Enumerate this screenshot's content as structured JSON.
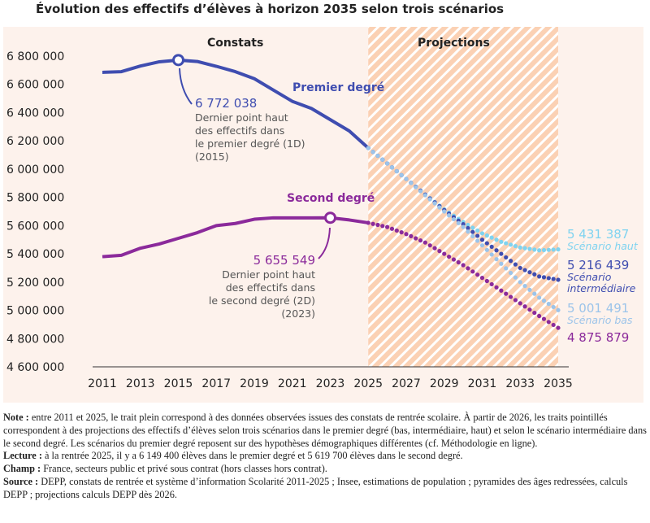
{
  "chart_data": {
    "type": "line",
    "title": "Évolution des effectifs d’élèves à horizon 2035 selon trois scénarios",
    "xlim": [
      2011,
      2035
    ],
    "ylim": [
      4600000,
      6800000
    ],
    "x_ticks": [
      "2011",
      "2013",
      "2015",
      "2017",
      "2019",
      "2021",
      "2023",
      "2025",
      "2027",
      "2029",
      "2031",
      "2033",
      "2035"
    ],
    "y_ticks": [
      "4 600 000",
      "4 800 000",
      "5 000 000",
      "5 200 000",
      "5 400 000",
      "5 600 000",
      "5 800 000",
      "6 000 000",
      "6 200 000",
      "6 400 000",
      "6 600 000",
      "6 800 000"
    ],
    "regions": {
      "observed": "Constats",
      "projected": "Projections"
    },
    "colors": {
      "premier": "#3f4db0",
      "second": "#8b2a9b",
      "haut": "#7fd3f0",
      "inter": "#3f4db0",
      "bas": "#9cc4ea",
      "hatch": "#fbd1b4"
    },
    "series": [
      {
        "name": "Premier degré",
        "key": "premier",
        "x": [
          2011,
          2012,
          2013,
          2014,
          2015,
          2016,
          2017,
          2018,
          2019,
          2020,
          2021,
          2022,
          2023,
          2024,
          2025
        ],
        "values": [
          6685000,
          6690000,
          6730000,
          6760000,
          6772038,
          6762000,
          6728000,
          6690000,
          6640000,
          6560000,
          6480000,
          6430000,
          6350000,
          6270000,
          6149400
        ]
      },
      {
        "name": "Second degré",
        "key": "second",
        "x": [
          2011,
          2012,
          2013,
          2014,
          2015,
          2016,
          2017,
          2018,
          2019,
          2020,
          2021,
          2022,
          2023,
          2024,
          2025
        ],
        "values": [
          5380000,
          5390000,
          5440000,
          5470000,
          5510000,
          5550000,
          5600000,
          5615000,
          5645000,
          5655000,
          5655000,
          5655000,
          5655549,
          5640000,
          5619700
        ]
      },
      {
        "name": "Scénario haut",
        "key": "haut",
        "dotted": true,
        "x": [
          2025,
          2026,
          2027,
          2028,
          2029,
          2030,
          2031,
          2032,
          2033,
          2034,
          2035
        ],
        "values": [
          6149400,
          6040000,
          5930000,
          5820000,
          5715000,
          5625000,
          5545000,
          5485000,
          5445000,
          5425000,
          5431387
        ]
      },
      {
        "name": "Scénario intermédiaire",
        "key": "inter",
        "dotted": true,
        "x": [
          2025,
          2026,
          2027,
          2028,
          2029,
          2030,
          2031,
          2032,
          2033,
          2034,
          2035
        ],
        "values": [
          6149400,
          6040000,
          5930000,
          5820000,
          5710000,
          5610000,
          5500000,
          5400000,
          5300000,
          5240000,
          5216439
        ]
      },
      {
        "name": "Scénario bas",
        "key": "bas",
        "dotted": true,
        "x": [
          2025,
          2026,
          2027,
          2028,
          2029,
          2030,
          2031,
          2032,
          2033,
          2034,
          2035
        ],
        "values": [
          6149400,
          6040000,
          5930000,
          5815000,
          5700000,
          5590000,
          5460000,
          5330000,
          5200000,
          5090000,
          5001491
        ]
      },
      {
        "name": "Second degré (projection)",
        "key": "second",
        "dotted": true,
        "x": [
          2025,
          2026,
          2027,
          2028,
          2029,
          2030,
          2031,
          2032,
          2033,
          2034,
          2035
        ],
        "values": [
          5619700,
          5590000,
          5540000,
          5480000,
          5400000,
          5320000,
          5230000,
          5140000,
          5050000,
          4960000,
          4875879
        ]
      }
    ],
    "labels": {
      "premier": "Premier degré",
      "second": "Second degré"
    },
    "annotations": {
      "peak1": {
        "value": "6 772 038",
        "lines": [
          "Dernier point haut",
          "des effectifs dans",
          "le premier degré (1D)",
          "(2015)"
        ]
      },
      "peak2": {
        "value": "5 655 549",
        "lines": [
          "Dernier point haut",
          "des effectifs dans",
          "le second degré (2D)",
          "(2023)"
        ]
      },
      "end_haut": {
        "value": "5 431 387",
        "label": "Scénario haut"
      },
      "end_inter": {
        "value": "5 216 439",
        "label1": "Scénario",
        "label2": "intermédiaire"
      },
      "end_bas": {
        "value": "5 001 491",
        "label": "Scénario bas"
      },
      "end_second": {
        "value": "4 875 879"
      }
    }
  },
  "notes": {
    "note_label": "Note :",
    "note": " entre 2011 et 2025, le trait plein correspond à des données observées issues des constats de rentrée scolaire. À partir de 2026, les traits pointillés correspondent à des projections des effectifs d’élèves selon trois scénarios dans le premier degré (bas, intermédiaire, haut) et selon le scénario intermédiaire dans le second degré. Les scénarios du premier degré reposent sur des hypothèses démographiques différentes (cf. Méthodologie en ligne).",
    "lecture_label": "Lecture :",
    "lecture": " à la rentrée 2025, il y a 6 149 400 élèves dans le premier degré et 5 619 700 élèves dans le second degré.",
    "champ_label": "Champ :",
    "champ": " France, secteurs public et privé sous contrat (hors classes hors contrat).",
    "source_label": "Source :",
    "source": " DEPP, constats de rentrée et système d’information Scolarité 2011-2025 ; Insee, estimations de population ; pyramides des âges redressées, calculs DEPP ; projections calculs DEPP dès 2026."
  }
}
